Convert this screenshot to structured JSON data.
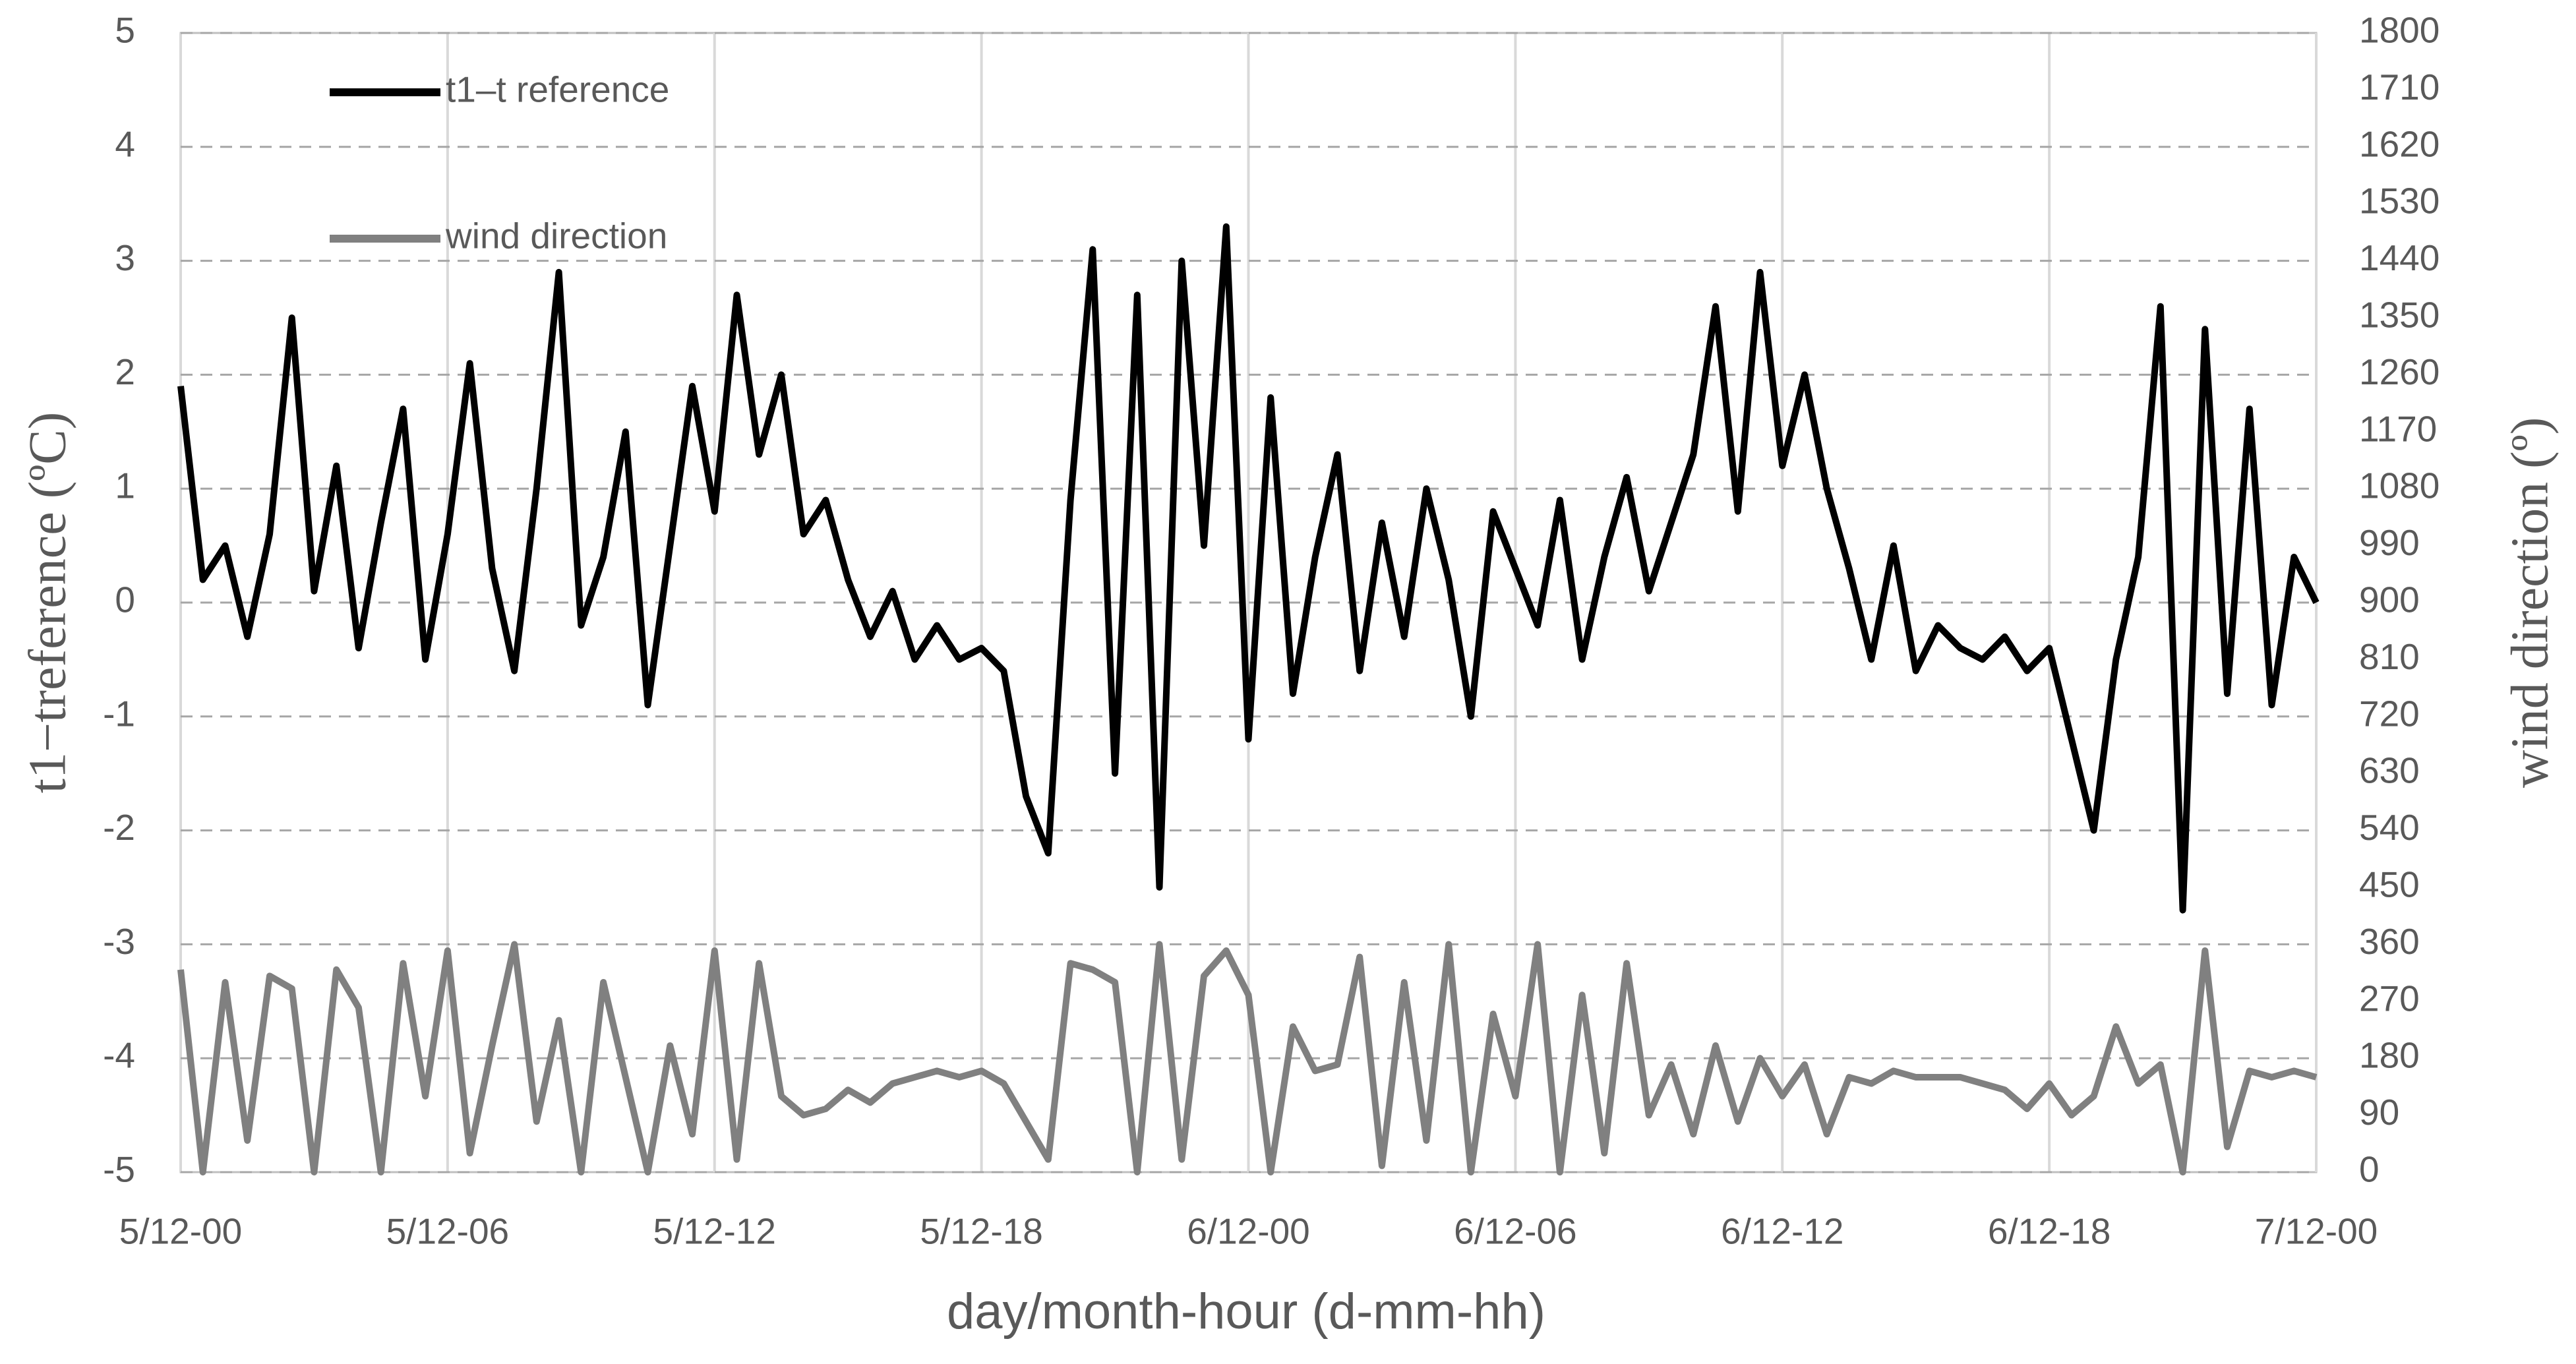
{
  "chart_data": {
    "type": "line",
    "x_label": "day/month-hour (d-mm-hh)",
    "y_label": "t1−treference (ºC)",
    "y2_label": "wind direction (º)",
    "legend": "top-left",
    "xlim": [
      0,
      48
    ],
    "xticks": [
      {
        "value": 0,
        "label": "5/12-00"
      },
      {
        "value": 6,
        "label": "5/12-06"
      },
      {
        "value": 12,
        "label": "5/12-12"
      },
      {
        "value": 18,
        "label": "5/12-18"
      },
      {
        "value": 24,
        "label": "6/12-00"
      },
      {
        "value": 30,
        "label": "6/12-06"
      },
      {
        "value": 36,
        "label": "6/12-12"
      },
      {
        "value": 42,
        "label": "6/12-18"
      },
      {
        "value": 48,
        "label": "7/12-00"
      }
    ],
    "ylim": [
      -5,
      5
    ],
    "yticks": [
      -5,
      -4,
      -3,
      -2,
      -1,
      0,
      1,
      2,
      3,
      4,
      5
    ],
    "y2lim": [
      0,
      1800
    ],
    "y2ticks": [
      0,
      90,
      180,
      270,
      360,
      450,
      540,
      630,
      720,
      810,
      900,
      990,
      1080,
      1170,
      1260,
      1350,
      1440,
      1530,
      1620,
      1710,
      1800
    ],
    "grid": true,
    "x": [
      0,
      0.5,
      1,
      1.5,
      2,
      2.5,
      3,
      3.5,
      4,
      4.5,
      5,
      5.5,
      6,
      6.5,
      7,
      7.5,
      8,
      8.5,
      9,
      9.5,
      10,
      10.5,
      11,
      11.5,
      12,
      12.5,
      13,
      13.5,
      14,
      14.5,
      15,
      15.5,
      16,
      16.5,
      17,
      17.5,
      18,
      18.5,
      19,
      19.5,
      20,
      20.5,
      21,
      21.5,
      22,
      22.5,
      23,
      23.5,
      24,
      24.5,
      25,
      25.5,
      26,
      26.5,
      27,
      27.5,
      28,
      28.5,
      29,
      29.5,
      30,
      30.5,
      31,
      31.5,
      32,
      32.5,
      33,
      33.5,
      34,
      34.5,
      35,
      35.5,
      36,
      36.5,
      37,
      37.5,
      38,
      38.5,
      39,
      39.5,
      40,
      40.5,
      41,
      41.5,
      42,
      42.5,
      43,
      43.5,
      44,
      44.5,
      45,
      45.5,
      46,
      46.5,
      47,
      47.5,
      48
    ],
    "series": [
      {
        "name": "t1–t reference",
        "color": "#000000",
        "values": [
          1.9,
          0.2,
          0.5,
          -0.3,
          0.6,
          2.5,
          0.1,
          1.2,
          -0.4,
          0.7,
          1.7,
          -0.5,
          0.6,
          2.1,
          0.3,
          -0.6,
          1.0,
          2.9,
          -0.2,
          0.4,
          1.5,
          -0.9,
          0.5,
          1.9,
          0.8,
          2.7,
          1.3,
          2.0,
          0.6,
          0.9,
          0.2,
          -0.3,
          0.1,
          -0.5,
          -0.2,
          -0.5,
          -0.4,
          -0.6,
          -1.7,
          -2.2,
          0.9,
          3.1,
          -1.5,
          2.7,
          -2.5,
          3.0,
          0.5,
          3.3,
          -1.2,
          1.8,
          -0.8,
          0.4,
          1.3,
          -0.6,
          0.7,
          -0.3,
          1.0,
          0.2,
          -1.0,
          0.8,
          0.3,
          -0.2,
          0.9,
          -0.5,
          0.4,
          1.1,
          0.1,
          0.7,
          1.3,
          2.6,
          0.8,
          2.9,
          1.2,
          2.0,
          1.0,
          0.3,
          -0.5,
          0.5,
          -0.6,
          -0.2,
          -0.4,
          -0.5,
          -0.3,
          -0.6,
          -0.4,
          -1.2,
          -2.0,
          -0.5,
          0.4,
          2.6,
          -2.7,
          2.4,
          -0.8,
          1.7,
          -0.9,
          0.4,
          0.0
        ]
      },
      {
        "name": "wind direction",
        "color": "#808080",
        "axis": "y2",
        "values": [
          320,
          0,
          300,
          50,
          310,
          290,
          0,
          320,
          260,
          0,
          330,
          120,
          350,
          30,
          200,
          360,
          80,
          240,
          0,
          300,
          150,
          0,
          200,
          60,
          350,
          20,
          330,
          120,
          90,
          100,
          130,
          110,
          140,
          150,
          160,
          150,
          160,
          140,
          80,
          20,
          330,
          320,
          300,
          0,
          360,
          20,
          310,
          350,
          280,
          0,
          230,
          160,
          170,
          340,
          10,
          300,
          50,
          360,
          0,
          250,
          120,
          360,
          0,
          280,
          30,
          330,
          90,
          170,
          60,
          200,
          80,
          180,
          120,
          170,
          60,
          150,
          140,
          160,
          150,
          150,
          150,
          140,
          130,
          100,
          140,
          90,
          120,
          230,
          140,
          170,
          0,
          350,
          40,
          160,
          150,
          160,
          150
        ]
      }
    ]
  }
}
